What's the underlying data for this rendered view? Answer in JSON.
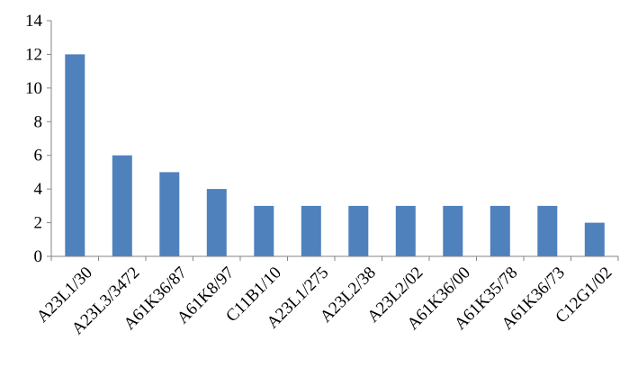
{
  "chart_data": {
    "type": "bar",
    "title": "",
    "xlabel": "",
    "ylabel": "",
    "categories": [
      "A23L1/30",
      "A23L3/3472",
      "A61K36/87",
      "A61K8/97",
      "C11B1/10",
      "A23L1/275",
      "A23L2/38",
      "A23L2/02",
      "A61K36/00",
      "A61K35/78",
      "A61K36/73",
      "C12G1/02"
    ],
    "values": [
      12,
      6,
      5,
      4,
      3,
      3,
      3,
      3,
      3,
      3,
      3,
      2
    ],
    "ylim": [
      0,
      14
    ],
    "yticks": [
      0,
      2,
      4,
      6,
      8,
      10,
      12,
      14
    ],
    "grid": false,
    "legend": "none",
    "bar_color": "#4F81BD",
    "axis_color": "#868686"
  }
}
